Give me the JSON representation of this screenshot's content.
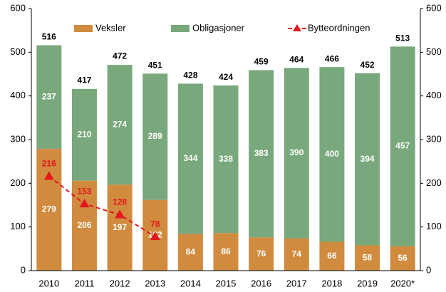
{
  "chart_data": {
    "type": "bar",
    "stacked": true,
    "categories": [
      "2010",
      "2011",
      "2012",
      "2013",
      "2014",
      "2015",
      "2016",
      "2017",
      "2018",
      "2019",
      "2020*"
    ],
    "series": [
      {
        "name": "Veksler",
        "color": "#d08b3e",
        "values": [
          279,
          206,
          197,
          162,
          84,
          86,
          76,
          74,
          66,
          58,
          56
        ]
      },
      {
        "name": "Obligasjoner",
        "color": "#78a87b",
        "values": [
          237,
          210,
          274,
          289,
          344,
          338,
          383,
          390,
          400,
          394,
          457
        ]
      },
      {
        "name": "Bytteordningen",
        "type": "line",
        "color": "#e3161d",
        "values": [
          216,
          153,
          128,
          78,
          null,
          null,
          null,
          null,
          null,
          null,
          null
        ]
      }
    ],
    "totals": [
      516,
      417,
      472,
      451,
      428,
      424,
      459,
      464,
      466,
      452,
      513
    ],
    "ylim": [
      0,
      600
    ],
    "yticks": [
      0,
      100,
      200,
      300,
      400,
      500,
      600
    ],
    "y2lim": [
      0,
      600
    ],
    "y2ticks": [
      0,
      100,
      200,
      300,
      400,
      500,
      600
    ],
    "grid": false,
    "legend": "top"
  }
}
